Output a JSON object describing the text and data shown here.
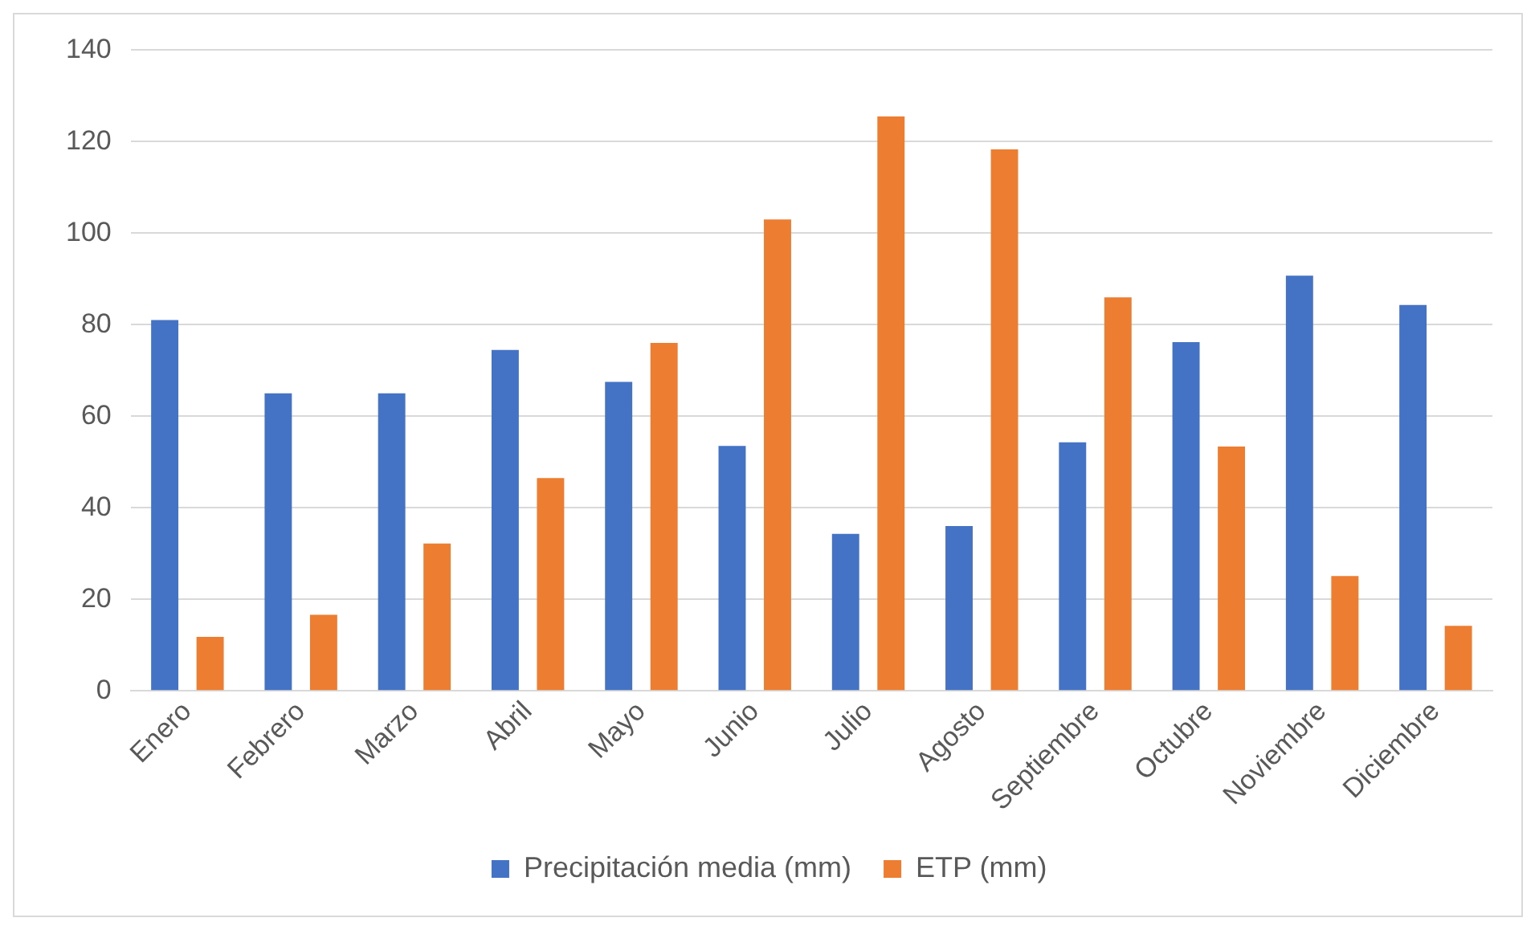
{
  "chart_data": {
    "type": "bar",
    "categories": [
      "Enero",
      "Febrero",
      "Marzo",
      "Abril",
      "Mayo",
      "Junio",
      "Julio",
      "Agosto",
      "Septiembre",
      "Octubre",
      "Noviembre",
      "Diciembre"
    ],
    "series": [
      {
        "name": "Precipitación media (mm)",
        "color": "#4472c4",
        "values": [
          81,
          65,
          65,
          74.5,
          67.5,
          53.5,
          34.3,
          36,
          54.3,
          76.2,
          90.7,
          84.3
        ]
      },
      {
        "name": "ETP (mm)",
        "color": "#ed7d31",
        "values": [
          11.8,
          16.6,
          32.2,
          46.5,
          76,
          103,
          125.5,
          118.3,
          86,
          53.4,
          25.1,
          14.2
        ]
      }
    ],
    "ylim": [
      0,
      140
    ],
    "yticks": [
      0,
      20,
      40,
      60,
      80,
      100,
      120,
      140
    ],
    "grid": "y",
    "legend": "bottom"
  }
}
